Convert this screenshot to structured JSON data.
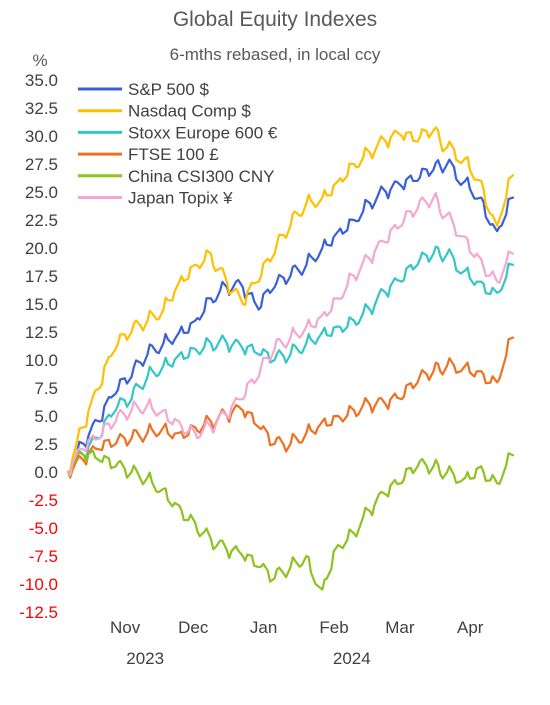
{
  "chart_data": {
    "type": "line",
    "title": "Global Equity Indexes",
    "subtitle": "6-mths rebased, in local ccy",
    "ylabel": "%",
    "xlabel": "",
    "ylim": [
      -12.5,
      35
    ],
    "ytick_step": 2.5,
    "yticks": [
      "35.0",
      "32.5",
      "30.0",
      "27.5",
      "25.0",
      "22.5",
      "20.0",
      "17.5",
      "15.0",
      "12.5",
      "10.0",
      "7.5",
      "5.0",
      "2.5",
      "0.0",
      "-2.5",
      "-5.0",
      "-7.5",
      "-10.0",
      "-12.5"
    ],
    "x_months": [
      "Nov",
      "Dec",
      "Jan",
      "Feb",
      "Mar",
      "Apr"
    ],
    "x_years": [
      "2023",
      "2024"
    ],
    "x_range": [
      "2023-10-13",
      "2024-04-19"
    ],
    "x_month_ticks": [
      "2023-11-01",
      "2023-12-01",
      "2024-01-01",
      "2024-02-01",
      "2024-03-01",
      "2024-04-01"
    ],
    "x_year_label_dates": [
      "2023-11-16",
      "2024-02-15"
    ],
    "grid": false,
    "legend_position": "top-left",
    "negative_tick_color": "#ff0000",
    "tick_color": "#404040",
    "series": [
      {
        "name": "S&P 500 $",
        "color": "#3a5fd8",
        "points": [
          [
            "2023-10-13",
            0.0
          ],
          [
            "2023-10-20",
            2.5
          ],
          [
            "2023-10-27",
            4.5
          ],
          [
            "2023-11-03",
            7.0
          ],
          [
            "2023-11-10",
            8.5
          ],
          [
            "2023-11-17",
            10.5
          ],
          [
            "2023-11-24",
            11.5
          ],
          [
            "2023-12-01",
            12.5
          ],
          [
            "2023-12-08",
            13.5
          ],
          [
            "2023-12-15",
            15.5
          ],
          [
            "2023-12-22",
            16.5
          ],
          [
            "2023-12-29",
            16.5
          ],
          [
            "2024-01-05",
            14.5
          ],
          [
            "2024-01-12",
            16.5
          ],
          [
            "2024-01-19",
            17.5
          ],
          [
            "2024-01-26",
            18.5
          ],
          [
            "2024-02-02",
            20.0
          ],
          [
            "2024-02-09",
            21.5
          ],
          [
            "2024-02-16",
            22.5
          ],
          [
            "2024-02-23",
            24.0
          ],
          [
            "2024-03-01",
            25.0
          ],
          [
            "2024-03-08",
            25.5
          ],
          [
            "2024-03-15",
            26.0
          ],
          [
            "2024-03-22",
            27.0
          ],
          [
            "2024-03-28",
            27.5
          ],
          [
            "2024-04-05",
            26.0
          ],
          [
            "2024-04-12",
            24.5
          ],
          [
            "2024-04-19",
            21.5
          ],
          [
            "2024-04-26",
            24.5
          ]
        ]
      },
      {
        "name": "Nasdaq Comp $",
        "color": "#ffc000",
        "points": [
          [
            "2023-10-13",
            0.0
          ],
          [
            "2023-10-20",
            4.0
          ],
          [
            "2023-10-27",
            7.5
          ],
          [
            "2023-11-03",
            11.0
          ],
          [
            "2023-11-10",
            12.5
          ],
          [
            "2023-11-17",
            13.5
          ],
          [
            "2023-11-24",
            14.5
          ],
          [
            "2023-12-01",
            17.0
          ],
          [
            "2023-12-08",
            18.5
          ],
          [
            "2023-12-15",
            19.5
          ],
          [
            "2023-12-22",
            17.0
          ],
          [
            "2023-12-29",
            15.0
          ],
          [
            "2024-01-05",
            17.0
          ],
          [
            "2024-01-12",
            19.5
          ],
          [
            "2024-01-19",
            22.0
          ],
          [
            "2024-01-26",
            24.0
          ],
          [
            "2024-02-02",
            24.5
          ],
          [
            "2024-02-09",
            26.0
          ],
          [
            "2024-02-16",
            27.5
          ],
          [
            "2024-02-23",
            28.5
          ],
          [
            "2024-03-01",
            29.5
          ],
          [
            "2024-03-08",
            30.0
          ],
          [
            "2024-03-15",
            29.5
          ],
          [
            "2024-03-22",
            30.5
          ],
          [
            "2024-03-28",
            29.0
          ],
          [
            "2024-04-05",
            28.0
          ],
          [
            "2024-04-12",
            26.0
          ],
          [
            "2024-04-19",
            22.0
          ],
          [
            "2024-04-26",
            26.5
          ]
        ]
      },
      {
        "name": "Stoxx Europe 600  €",
        "color": "#33c6c6",
        "points": [
          [
            "2023-10-13",
            0.0
          ],
          [
            "2023-10-20",
            1.5
          ],
          [
            "2023-10-27",
            3.0
          ],
          [
            "2023-11-03",
            5.5
          ],
          [
            "2023-11-10",
            6.5
          ],
          [
            "2023-11-17",
            8.5
          ],
          [
            "2023-11-24",
            9.5
          ],
          [
            "2023-12-01",
            10.5
          ],
          [
            "2023-12-08",
            11.0
          ],
          [
            "2023-12-15",
            11.5
          ],
          [
            "2023-12-22",
            11.5
          ],
          [
            "2023-12-29",
            11.0
          ],
          [
            "2024-01-05",
            10.5
          ],
          [
            "2024-01-12",
            10.0
          ],
          [
            "2024-01-19",
            10.5
          ],
          [
            "2024-01-26",
            11.5
          ],
          [
            "2024-02-02",
            12.5
          ],
          [
            "2024-02-09",
            13.0
          ],
          [
            "2024-02-16",
            13.5
          ],
          [
            "2024-02-23",
            14.5
          ],
          [
            "2024-03-01",
            16.0
          ],
          [
            "2024-03-08",
            17.0
          ],
          [
            "2024-03-15",
            18.5
          ],
          [
            "2024-03-22",
            19.5
          ],
          [
            "2024-03-28",
            19.5
          ],
          [
            "2024-04-05",
            18.0
          ],
          [
            "2024-04-12",
            17.0
          ],
          [
            "2024-04-19",
            16.0
          ],
          [
            "2024-04-26",
            18.5
          ]
        ]
      },
      {
        "name": "FTSE 100  £",
        "color": "#f07020",
        "points": [
          [
            "2023-10-13",
            0.0
          ],
          [
            "2023-10-20",
            1.0
          ],
          [
            "2023-10-27",
            2.0
          ],
          [
            "2023-11-03",
            2.5
          ],
          [
            "2023-11-10",
            3.0
          ],
          [
            "2023-11-17",
            3.5
          ],
          [
            "2023-11-24",
            4.0
          ],
          [
            "2023-12-01",
            3.5
          ],
          [
            "2023-12-08",
            4.0
          ],
          [
            "2023-12-15",
            4.5
          ],
          [
            "2023-12-22",
            5.0
          ],
          [
            "2023-12-29",
            5.5
          ],
          [
            "2024-01-05",
            4.0
          ],
          [
            "2024-01-12",
            2.5
          ],
          [
            "2024-01-19",
            2.5
          ],
          [
            "2024-01-26",
            3.5
          ],
          [
            "2024-02-02",
            4.5
          ],
          [
            "2024-02-09",
            5.0
          ],
          [
            "2024-02-16",
            5.5
          ],
          [
            "2024-02-23",
            6.0
          ],
          [
            "2024-03-01",
            6.0
          ],
          [
            "2024-03-08",
            6.5
          ],
          [
            "2024-03-15",
            8.0
          ],
          [
            "2024-03-22",
            9.0
          ],
          [
            "2024-03-28",
            9.5
          ],
          [
            "2024-04-05",
            9.5
          ],
          [
            "2024-04-12",
            9.0
          ],
          [
            "2024-04-19",
            8.0
          ],
          [
            "2024-04-26",
            12.0
          ]
        ]
      },
      {
        "name": "China CSI300  CNY",
        "color": "#8dc21f",
        "points": [
          [
            "2023-10-13",
            0.0
          ],
          [
            "2023-10-20",
            1.5
          ],
          [
            "2023-10-27",
            1.0
          ],
          [
            "2023-11-03",
            0.5
          ],
          [
            "2023-11-10",
            0.0
          ],
          [
            "2023-11-17",
            -0.5
          ],
          [
            "2023-11-24",
            -1.5
          ],
          [
            "2023-12-01",
            -3.0
          ],
          [
            "2023-12-08",
            -4.5
          ],
          [
            "2023-12-15",
            -6.0
          ],
          [
            "2023-12-22",
            -7.0
          ],
          [
            "2023-12-29",
            -7.5
          ],
          [
            "2024-01-05",
            -8.5
          ],
          [
            "2024-01-12",
            -9.5
          ],
          [
            "2024-01-19",
            -8.5
          ],
          [
            "2024-01-26",
            -7.5
          ],
          [
            "2024-02-02",
            -10.5
          ],
          [
            "2024-02-09",
            -6.5
          ],
          [
            "2024-02-16",
            -5.5
          ],
          [
            "2024-02-23",
            -3.5
          ],
          [
            "2024-03-01",
            -2.0
          ],
          [
            "2024-03-08",
            -1.0
          ],
          [
            "2024-03-15",
            0.5
          ],
          [
            "2024-03-22",
            0.5
          ],
          [
            "2024-03-28",
            0.0
          ],
          [
            "2024-04-05",
            -0.5
          ],
          [
            "2024-04-12",
            0.5
          ],
          [
            "2024-04-19",
            -1.0
          ],
          [
            "2024-04-26",
            1.5
          ]
        ]
      },
      {
        "name": "Japan Topix ¥",
        "color": "#f4a7cf",
        "points": [
          [
            "2023-10-13",
            0.0
          ],
          [
            "2023-10-20",
            2.0
          ],
          [
            "2023-10-27",
            3.0
          ],
          [
            "2023-11-03",
            4.5
          ],
          [
            "2023-11-10",
            5.5
          ],
          [
            "2023-11-17",
            6.0
          ],
          [
            "2023-11-24",
            5.5
          ],
          [
            "2023-12-01",
            4.5
          ],
          [
            "2023-12-08",
            3.5
          ],
          [
            "2023-12-15",
            4.0
          ],
          [
            "2023-12-22",
            5.0
          ],
          [
            "2023-12-29",
            6.5
          ],
          [
            "2024-01-05",
            8.5
          ],
          [
            "2024-01-12",
            11.0
          ],
          [
            "2024-01-19",
            12.0
          ],
          [
            "2024-01-26",
            13.0
          ],
          [
            "2024-02-02",
            14.0
          ],
          [
            "2024-02-09",
            15.5
          ],
          [
            "2024-02-16",
            17.5
          ],
          [
            "2024-02-23",
            19.0
          ],
          [
            "2024-03-01",
            20.5
          ],
          [
            "2024-03-08",
            22.0
          ],
          [
            "2024-03-15",
            23.5
          ],
          [
            "2024-03-22",
            24.5
          ],
          [
            "2024-03-28",
            23.0
          ],
          [
            "2024-04-05",
            21.0
          ],
          [
            "2024-04-12",
            19.0
          ],
          [
            "2024-04-19",
            17.0
          ],
          [
            "2024-04-26",
            19.5
          ]
        ]
      }
    ]
  }
}
